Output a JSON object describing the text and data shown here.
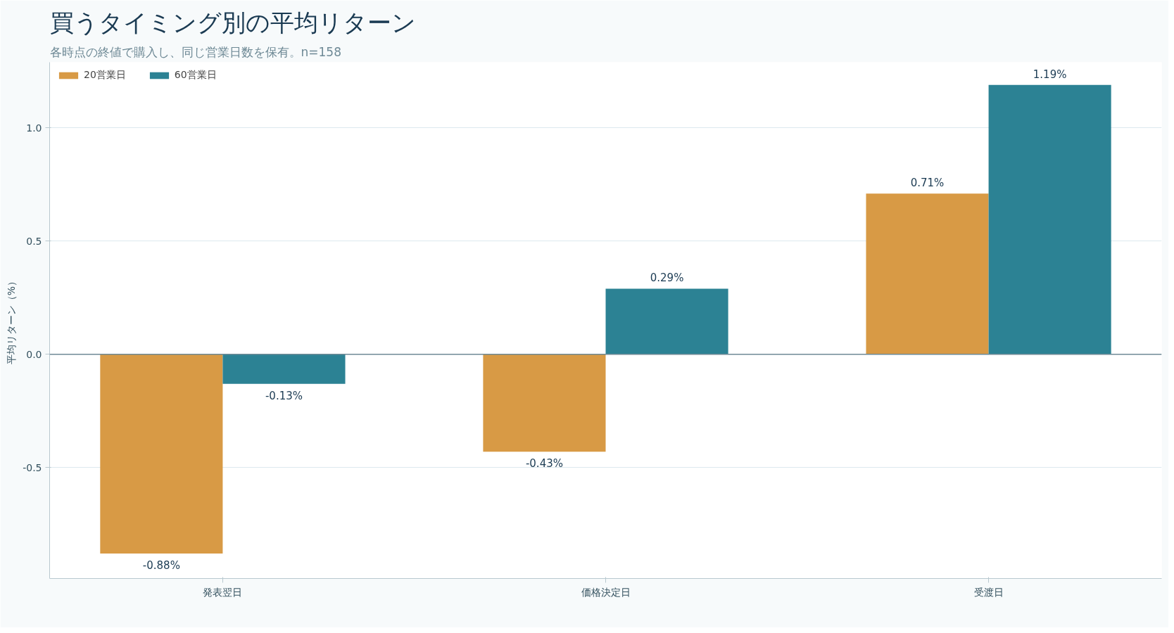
{
  "chart_data": {
    "type": "bar",
    "title": "買うタイミング別の平均リターン",
    "subtitle": "各時点の終値で購入し、同じ営業日数を保有。n=158",
    "ylabel": "平均リターン（%）",
    "categories": [
      "発表翌日",
      "価格決定日",
      "受渡日"
    ],
    "series": [
      {
        "name": "20営業日",
        "color": "#d89a45",
        "values": [
          -0.88,
          -0.43,
          0.71
        ],
        "value_labels": [
          "-0.88%",
          "-0.43%",
          "0.71%"
        ]
      },
      {
        "name": "60営業日",
        "color": "#2c8294",
        "values": [
          -0.13,
          0.29,
          1.19
        ],
        "value_labels": [
          "-0.13%",
          "0.29%",
          "1.19%"
        ]
      }
    ],
    "ylim": [
      -0.99,
      1.29
    ],
    "yticks": [
      {
        "value": -0.5,
        "label": "-0.5"
      },
      {
        "value": 0,
        "label": "0.0"
      },
      {
        "value": 0.5,
        "label": "0.5"
      },
      {
        "value": 1.0,
        "label": "1.0"
      }
    ],
    "grid": "y",
    "legend": "top left",
    "ref_lines": [
      {
        "axis": "y",
        "value": 0,
        "color": "#6f8a96"
      }
    ]
  }
}
